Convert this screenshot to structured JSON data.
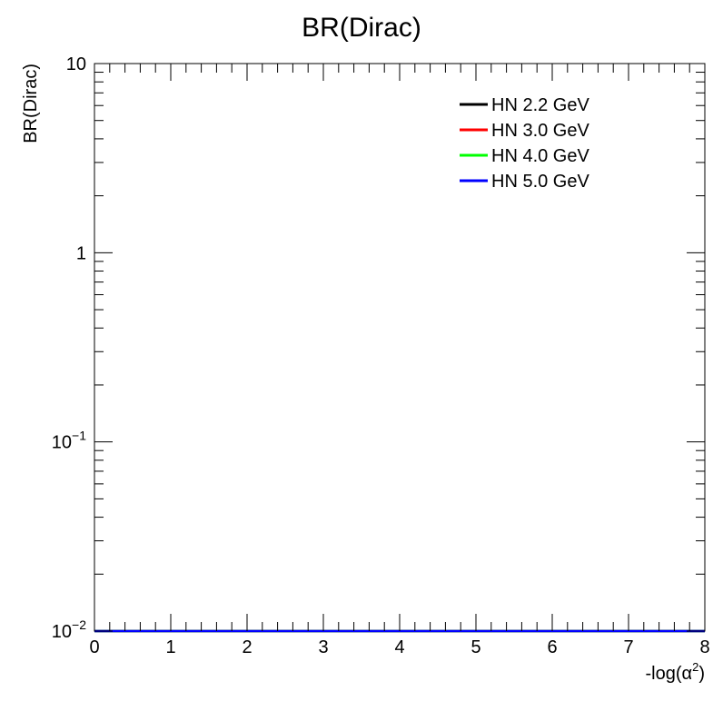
{
  "chart_data": {
    "type": "line",
    "title": "BR(Dirac)",
    "xlabel_prefix": "-log(α",
    "xlabel_sup": "2",
    "xlabel_suffix": ")",
    "ylabel": "BR(Dirac)",
    "xlim": [
      0,
      8
    ],
    "ylim": [
      0.01,
      10
    ],
    "yscale": "log",
    "grid": false,
    "legend_position": "top-right",
    "x_ticks": [
      "0",
      "1",
      "2",
      "3",
      "4",
      "5",
      "6",
      "7",
      "8"
    ],
    "y_ticks": [
      {
        "value": 0.01,
        "base": "10",
        "exp": "−2"
      },
      {
        "value": 0.1,
        "base": "10",
        "exp": "−1"
      },
      {
        "value": 1,
        "base": "1",
        "exp": ""
      },
      {
        "value": 10,
        "base": "10",
        "exp": ""
      }
    ],
    "series": [
      {
        "name": "HN 2.2 GeV",
        "color": "#000000",
        "x": [
          0,
          8
        ],
        "y": [
          0.01,
          0.01
        ]
      },
      {
        "name": "HN 3.0 GeV",
        "color": "#ff0000",
        "x": [
          0,
          8
        ],
        "y": [
          0.01,
          0.01
        ]
      },
      {
        "name": "HN 4.0 GeV",
        "color": "#00ff00",
        "x": [
          0,
          8
        ],
        "y": [
          0.01,
          0.01
        ]
      },
      {
        "name": "HN 5.0 GeV",
        "color": "#0000ff",
        "x": [
          0,
          8
        ],
        "y": [
          0.01,
          0.01
        ]
      }
    ]
  }
}
